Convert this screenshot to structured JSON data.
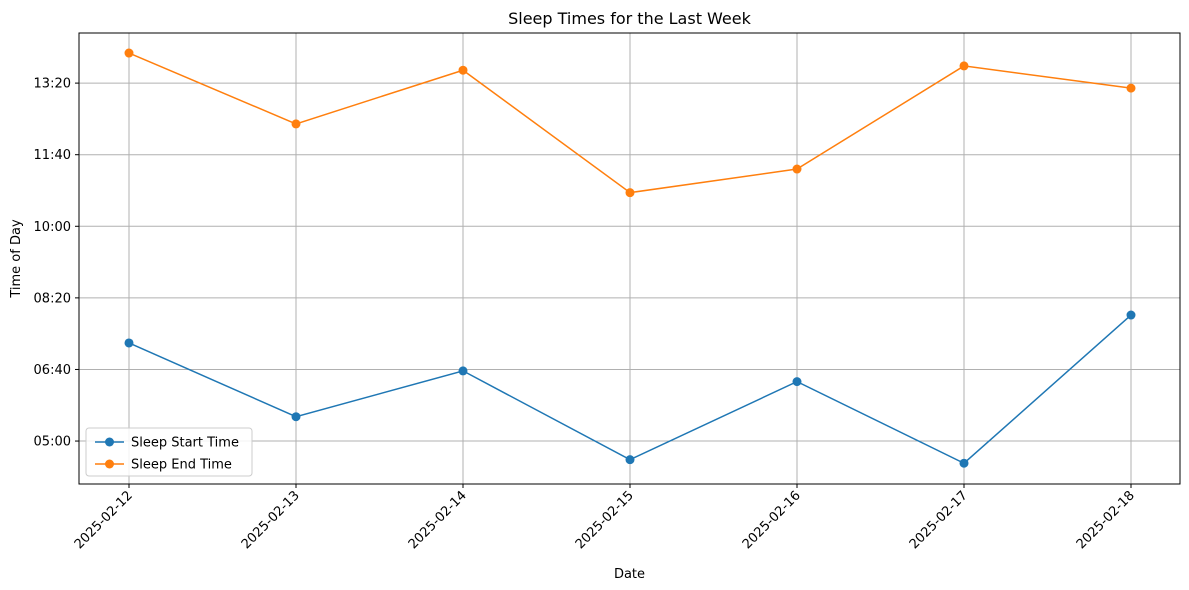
{
  "chart_data": {
    "type": "line",
    "title": "Sleep Times for the Last Week",
    "xlabel": "Date",
    "ylabel": "Time of Day",
    "categories": [
      "2025-02-12",
      "2025-02-13",
      "2025-02-14",
      "2025-02-15",
      "2025-02-16",
      "2025-02-17",
      "2025-02-18"
    ],
    "y_unit": "time of day (HH:MM)",
    "ylim": [
      "04:00",
      "14:30"
    ],
    "yticks": [
      "05:00",
      "06:40",
      "08:20",
      "10:00",
      "11:40",
      "13:20"
    ],
    "grid": true,
    "legend_position": "lower-left",
    "series": [
      {
        "name": "Sleep Start Time",
        "color": "#1f77b4",
        "marker": "circle",
        "values": [
          "07:17",
          "05:34",
          "06:38",
          "04:34",
          "06:23",
          "04:29",
          "07:56"
        ]
      },
      {
        "name": "Sleep End Time",
        "color": "#ff7f0e",
        "marker": "circle",
        "values": [
          "14:02",
          "12:23",
          "13:38",
          "10:47",
          "11:20",
          "13:44",
          "13:13"
        ]
      }
    ]
  },
  "colors": {
    "grid": "#b0b0b0",
    "axes": "#000000"
  }
}
